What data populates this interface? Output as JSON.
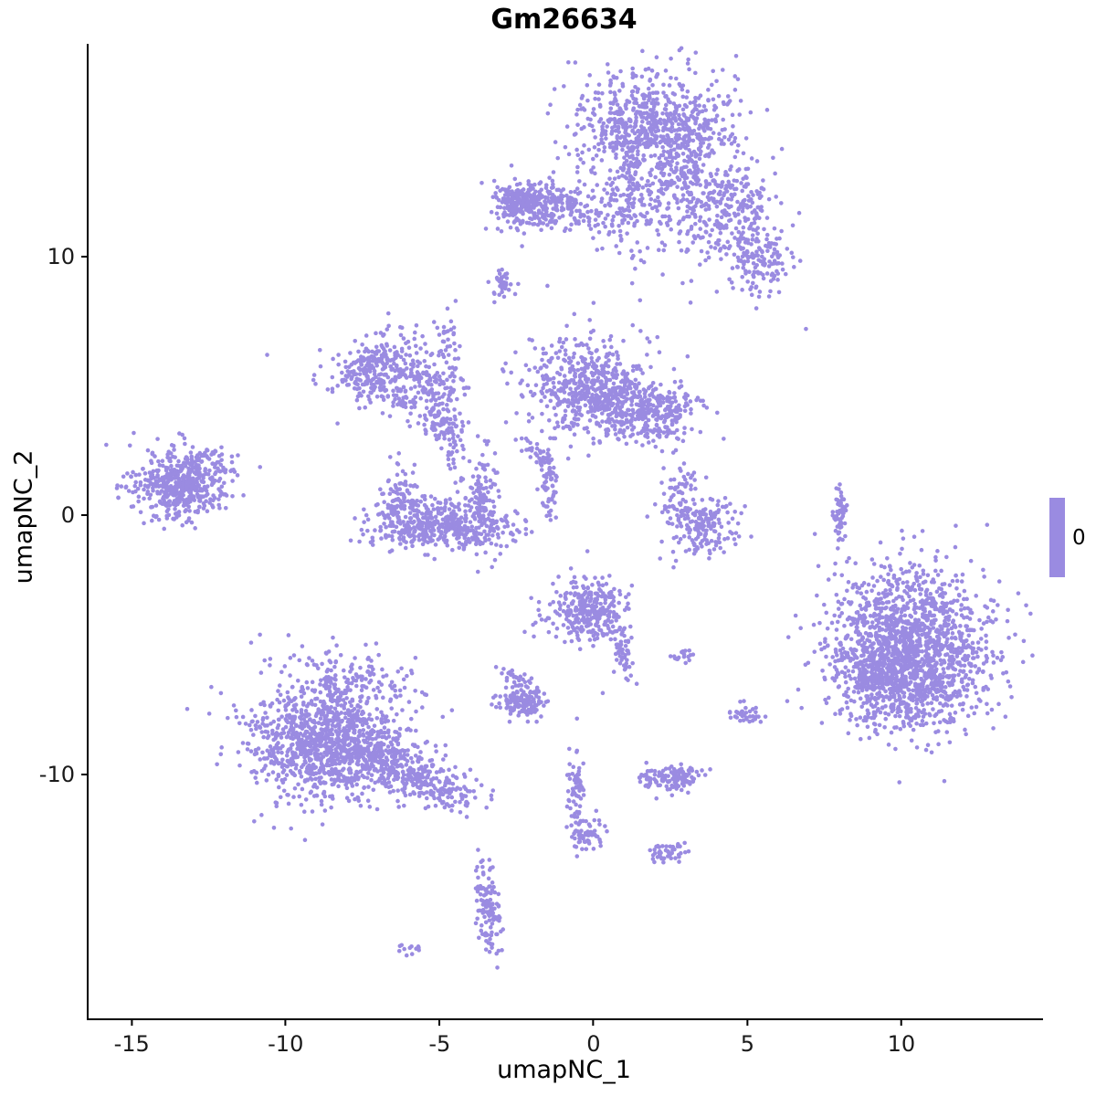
{
  "legend": {
    "label": "0"
  },
  "chart_data": {
    "type": "scatter",
    "title": "Gm26634",
    "xlabel": "umapNC_1",
    "ylabel": "umapNC_2",
    "xlim": [
      -16.4,
      14.6
    ],
    "ylim": [
      -19.4,
      18.2
    ],
    "x_ticks": [
      -15,
      -10,
      -5,
      0,
      5,
      10
    ],
    "y_ticks": [
      -10,
      0,
      10
    ],
    "grid": false,
    "legend_position": "right",
    "legend_value": "0",
    "point_color": "#9A8BE1",
    "point_radius": 2.3,
    "clusters": [
      {
        "x": 2.0,
        "y": 14.8,
        "sx": 1.25,
        "sy": 1.15,
        "n": 850,
        "rot": -15
      },
      {
        "x": 3.5,
        "y": 12.5,
        "sx": 0.7,
        "sy": 0.9,
        "n": 130
      },
      {
        "x": 1.2,
        "y": 12.0,
        "sx": 0.5,
        "sy": 0.7,
        "n": 90
      },
      {
        "x": 2.9,
        "y": 11.0,
        "sx": 1.1,
        "sy": 1.0,
        "n": 90
      },
      {
        "x": 5.0,
        "y": 12.3,
        "sx": 0.55,
        "sy": 0.6,
        "n": 90
      },
      {
        "x": 5.35,
        "y": 9.9,
        "sx": 0.55,
        "sy": 0.65,
        "n": 140
      },
      {
        "x": 4.5,
        "y": 10.9,
        "sx": 0.7,
        "sy": 0.7,
        "n": 40
      },
      {
        "x": -1.6,
        "y": 12.0,
        "sx": 0.8,
        "sy": 0.45,
        "n": 270
      },
      {
        "x": -2.5,
        "y": 12.0,
        "sx": 0.4,
        "sy": 0.4,
        "n": 120
      },
      {
        "x": 0.3,
        "y": 11.5,
        "sx": 0.7,
        "sy": 0.35,
        "n": 40
      },
      {
        "x": -2.9,
        "y": 8.9,
        "sx": 0.17,
        "sy": 0.28,
        "n": 40
      },
      {
        "x": -6.9,
        "y": 5.6,
        "sx": 0.85,
        "sy": 0.65,
        "n": 330,
        "rot": 20
      },
      {
        "x": -5.5,
        "y": 4.7,
        "sx": 0.6,
        "sy": 0.35,
        "n": 90,
        "rot": 30
      },
      {
        "x": -4.9,
        "y": 3.5,
        "sx": 0.4,
        "sy": 0.4,
        "n": 80
      },
      {
        "x": -4.65,
        "y": 6.1,
        "sx": 0.18,
        "sy": 1.0,
        "n": 55
      },
      {
        "x": -4.55,
        "y": 2.3,
        "sx": 0.15,
        "sy": 0.7,
        "n": 30
      },
      {
        "x": -0.2,
        "y": 5.0,
        "sx": 1.0,
        "sy": 0.95,
        "n": 520
      },
      {
        "x": 2.0,
        "y": 3.9,
        "sx": 0.75,
        "sy": 0.6,
        "n": 240
      },
      {
        "x": 0.9,
        "y": 4.3,
        "sx": 0.6,
        "sy": 0.5,
        "n": 110
      },
      {
        "x": -1.85,
        "y": 2.3,
        "sx": 0.5,
        "sy": 0.15,
        "n": 40,
        "rot": -57
      },
      {
        "x": -1.5,
        "y": 1.1,
        "sx": 0.15,
        "sy": 0.75,
        "n": 50
      },
      {
        "x": -4.85,
        "y": -0.4,
        "sx": 1.2,
        "sy": 0.45,
        "n": 430
      },
      {
        "x": -6.25,
        "y": 0.6,
        "sx": 0.25,
        "sy": 0.8,
        "n": 90
      },
      {
        "x": -3.6,
        "y": 0.7,
        "sx": 0.25,
        "sy": 0.8,
        "n": 90
      },
      {
        "x": -4.9,
        "y": 0.2,
        "sx": 0.9,
        "sy": 0.5,
        "n": 60
      },
      {
        "x": -13.4,
        "y": 1.2,
        "sx": 0.8,
        "sy": 0.7,
        "n": 520
      },
      {
        "x": -12.3,
        "y": 2.0,
        "sx": 0.5,
        "sy": 0.15,
        "n": 30,
        "rot": -35
      },
      {
        "x": 3.5,
        "y": -0.4,
        "sx": 0.5,
        "sy": 0.55,
        "n": 170
      },
      {
        "x": 2.7,
        "y": 0.6,
        "sx": 0.3,
        "sy": 0.6,
        "n": 50
      },
      {
        "x": 3.0,
        "y": 1.3,
        "sx": 0.2,
        "sy": 0.2,
        "n": 15
      },
      {
        "x": 8.0,
        "y": 0.0,
        "sx": 0.1,
        "sy": 0.55,
        "n": 55
      },
      {
        "x": 10.35,
        "y": -5.15,
        "sx": 1.3,
        "sy": 1.55,
        "n": 1500
      },
      {
        "x": 9.6,
        "y": -6.3,
        "sx": 0.85,
        "sy": 0.75,
        "n": 350
      },
      {
        "x": -0.25,
        "y": -3.7,
        "sx": 0.7,
        "sy": 0.6,
        "n": 300
      },
      {
        "x": 0.95,
        "y": -5.3,
        "sx": 0.2,
        "sy": 0.55,
        "n": 55,
        "rot": 10
      },
      {
        "x": 2.85,
        "y": -5.4,
        "sx": 0.2,
        "sy": 0.18,
        "n": 18
      },
      {
        "x": -2.3,
        "y": -7.2,
        "sx": 0.4,
        "sy": 0.3,
        "n": 140
      },
      {
        "x": -2.5,
        "y": -6.3,
        "sx": 0.35,
        "sy": 0.12,
        "n": 25,
        "rot": -30
      },
      {
        "x": 5.0,
        "y": -7.7,
        "sx": 0.28,
        "sy": 0.2,
        "n": 35
      },
      {
        "x": -8.7,
        "y": -8.7,
        "sx": 1.25,
        "sy": 1.2,
        "n": 1150
      },
      {
        "x": -7.8,
        "y": -6.3,
        "sx": 0.8,
        "sy": 0.5,
        "n": 90
      },
      {
        "x": -6.8,
        "y": -9.4,
        "sx": 0.7,
        "sy": 0.5,
        "n": 150
      },
      {
        "x": -5.4,
        "y": -10.3,
        "sx": 1.0,
        "sy": 0.4,
        "n": 240,
        "rot": -28
      },
      {
        "x": 2.55,
        "y": -10.1,
        "sx": 0.5,
        "sy": 0.25,
        "n": 130
      },
      {
        "x": -0.55,
        "y": -10.6,
        "sx": 0.13,
        "sy": 0.75,
        "n": 65
      },
      {
        "x": -0.25,
        "y": -12.3,
        "sx": 0.3,
        "sy": 0.28,
        "n": 55
      },
      {
        "x": 2.35,
        "y": -13.0,
        "sx": 0.3,
        "sy": 0.2,
        "n": 45
      },
      {
        "x": -3.45,
        "y": -15.0,
        "sx": 0.2,
        "sy": 0.95,
        "n": 115,
        "rot": 5
      },
      {
        "x": -6.05,
        "y": -16.7,
        "sx": 0.3,
        "sy": 0.1,
        "n": 12
      }
    ],
    "singles": [
      [
        -10.6,
        6.2
      ],
      [
        6.9,
        7.2
      ],
      [
        8.0,
        1.2
      ],
      [
        -3.75,
        -12.9
      ],
      [
        2.6,
        -2.0
      ],
      [
        0.3,
        -6.85
      ]
    ]
  }
}
